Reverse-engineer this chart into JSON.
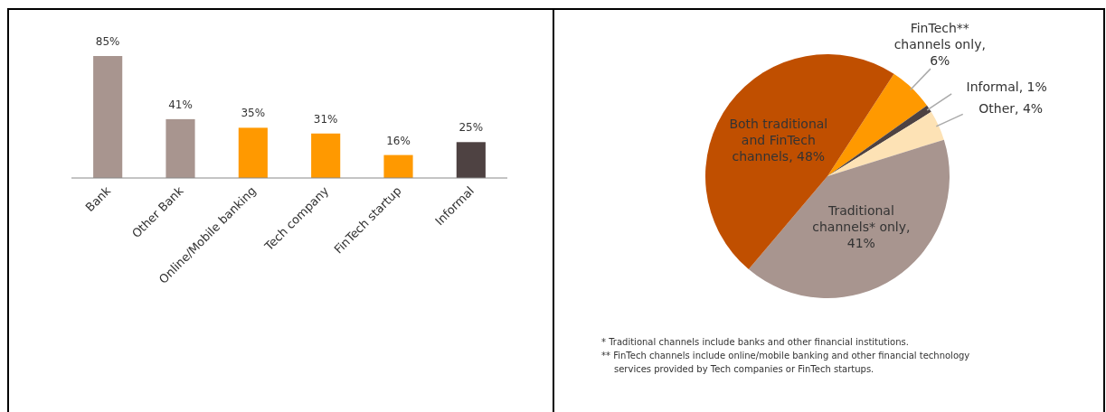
{
  "chart_data": [
    {
      "type": "bar",
      "categories": [
        "Bank",
        "Other Bank",
        "Online/Mobile banking",
        "Tech company",
        "FinTech startup",
        "Informal"
      ],
      "values": [
        85,
        41,
        35,
        31,
        16,
        25
      ],
      "colors": [
        "#a8958f",
        "#a8958f",
        "#ff9900",
        "#ff9900",
        "#ff9900",
        "#4e4242"
      ],
      "value_labels": [
        "85%",
        "41%",
        "35%",
        "31%",
        "16%",
        "25%"
      ]
    },
    {
      "type": "pie",
      "categories": [
        "FinTech** channels only, 6%",
        "Informal, 1%",
        "Other, 4%",
        "Traditional channels* only, 41%",
        "Both traditional and FinTech channels, 48%"
      ],
      "values": [
        6,
        1,
        4,
        41,
        48
      ],
      "colors": [
        "#ff9900",
        "#4e4242",
        "#fde2b5",
        "#a8958f",
        "#c04f00"
      ],
      "annotations": [
        "* Traditional channels include banks and other financial institutions.",
        "** FinTech channels include online/mobile banking and other financial technology services provided by Tech companies or FinTech startups."
      ]
    }
  ]
}
